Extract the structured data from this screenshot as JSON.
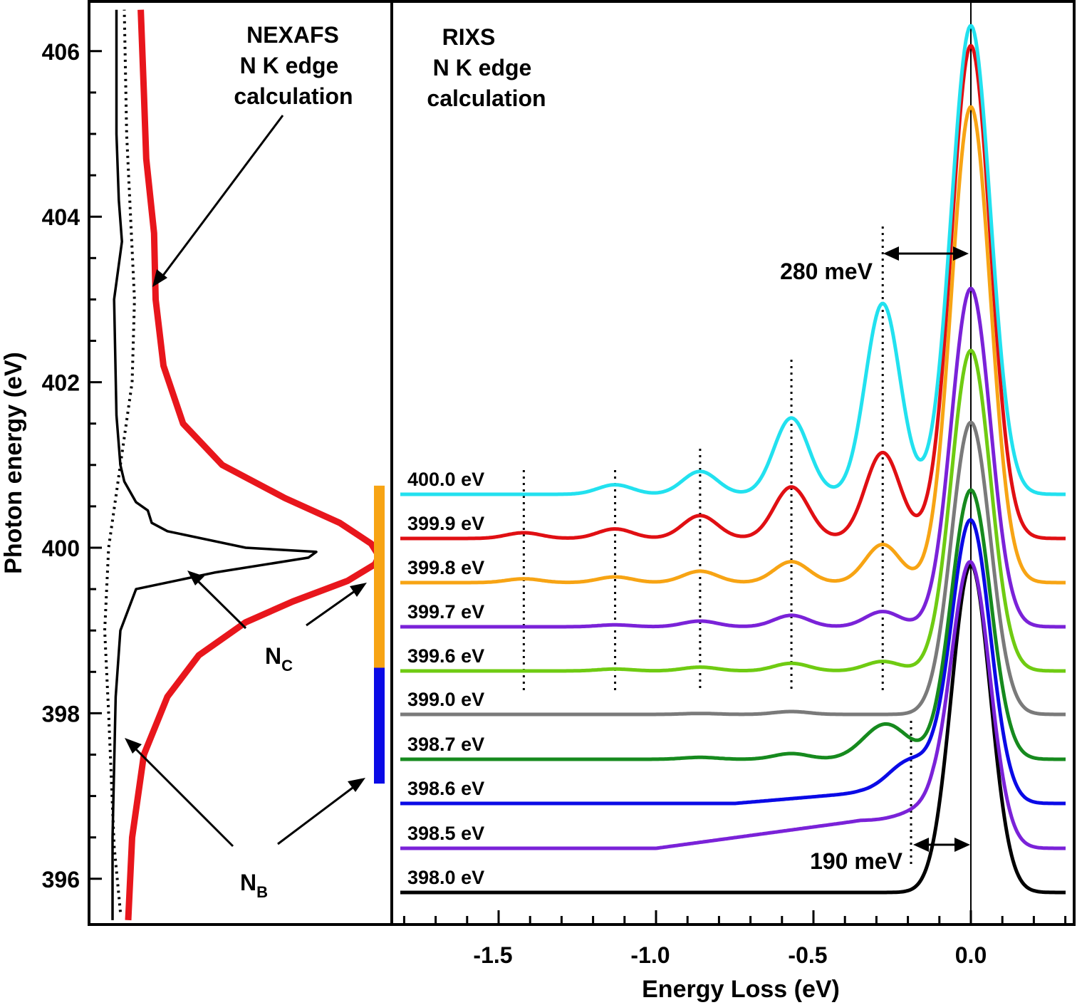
{
  "chart_data": [
    {
      "type": "line",
      "panel": "left",
      "annotation_lines": [
        "NEXAFS",
        "N K edge",
        "calculation"
      ],
      "ylabel": "Photon energy (eV)",
      "ylim": [
        395.5,
        406.6
      ],
      "y_ticks": [
        "396",
        "398",
        "400",
        "402",
        "404",
        "406"
      ],
      "y_tick_values": [
        396,
        398,
        400,
        402,
        404,
        406
      ],
      "series": [
        {
          "style": "black-solid",
          "color": "#000000",
          "points": [
            [
              0.03,
              395.5
            ],
            [
              0.03,
              396.5
            ],
            [
              0.034,
              398.2
            ],
            [
              0.04,
              399.0
            ],
            [
              0.06,
              399.5
            ],
            [
              0.16,
              399.7
            ],
            [
              0.28,
              399.88
            ],
            [
              0.29,
              399.95
            ],
            [
              0.2,
              400.0
            ],
            [
              0.1,
              400.2
            ],
            [
              0.08,
              400.3
            ],
            [
              0.075,
              400.45
            ],
            [
              0.06,
              400.55
            ],
            [
              0.045,
              400.8
            ],
            [
              0.04,
              401.0
            ],
            [
              0.035,
              401.6
            ],
            [
              0.032,
              403.0
            ],
            [
              0.042,
              403.7
            ],
            [
              0.038,
              404.2
            ],
            [
              0.035,
              405.0
            ],
            [
              0.035,
              406.5
            ]
          ]
        },
        {
          "style": "black-dotted",
          "color": "#000000",
          "points": [
            [
              0.04,
              395.6
            ],
            [
              0.032,
              396.4
            ],
            [
              0.025,
              398.0
            ],
            [
              0.02,
              399.0
            ],
            [
              0.025,
              400.0
            ],
            [
              0.04,
              401.0
            ],
            [
              0.055,
              402.0
            ],
            [
              0.058,
              403.0
            ],
            [
              0.053,
              404.0
            ],
            [
              0.048,
              405.0
            ],
            [
              0.045,
              406.5
            ]
          ]
        },
        {
          "style": "red-thick",
          "color": "#e8161c",
          "points": [
            [
              0.05,
              395.5
            ],
            [
              0.055,
              396.5
            ],
            [
              0.07,
              397.5
            ],
            [
              0.1,
              398.2
            ],
            [
              0.14,
              398.7
            ],
            [
              0.2,
              399.1
            ],
            [
              0.26,
              399.35
            ],
            [
              0.33,
              399.6
            ],
            [
              0.365,
              399.8
            ],
            [
              0.37,
              399.9
            ],
            [
              0.36,
              400.05
            ],
            [
              0.32,
              400.3
            ],
            [
              0.25,
              400.6
            ],
            [
              0.17,
              401.0
            ],
            [
              0.12,
              401.5
            ],
            [
              0.095,
              402.2
            ],
            [
              0.085,
              403.0
            ],
            [
              0.083,
              403.8
            ],
            [
              0.073,
              404.7
            ],
            [
              0.07,
              405.5
            ],
            [
              0.066,
              406.5
            ]
          ]
        }
      ],
      "labels": [
        {
          "text": "N",
          "sub": "C"
        },
        {
          "text": "N",
          "sub": "B"
        }
      ],
      "bands": [
        {
          "color": "#f7a414",
          "ylim": [
            398.45,
            400.75
          ]
        },
        {
          "color": "#0a0ae6",
          "ylim": [
            397.15,
            398.55
          ]
        }
      ]
    },
    {
      "type": "line",
      "panel": "right",
      "annotation_lines": [
        "RIXS",
        "N K edge",
        "calculation"
      ],
      "xlabel": "Energy Loss (eV)",
      "xlim": [
        -1.85,
        0.3
      ],
      "x_ticks": [
        "-1.5",
        "-1.0",
        "-0.5",
        "0.0"
      ],
      "x_tick_values": [
        -1.5,
        -1.0,
        -0.5,
        0.0
      ],
      "annotations": [
        {
          "text": "280 meV"
        },
        {
          "text": "190 meV"
        }
      ],
      "dotted_x": [
        -1.42,
        -1.13,
        -0.86,
        -0.57,
        -0.28
      ],
      "dotted_x2": [
        -0.19
      ],
      "series": [
        {
          "name": "400.0 eV",
          "color": "#22e1ef",
          "elastic": 658,
          "bumps": [
            [
              -1.13,
              0.05
            ],
            [
              -0.86,
              0.12
            ],
            [
              -0.57,
              0.4
            ],
            [
              -0.28,
              1.0
            ]
          ]
        },
        {
          "name": "399.9 eV",
          "color": "#e00f13",
          "elastic": 692,
          "bumps": [
            [
              -1.42,
              0.03
            ],
            [
              -1.13,
              0.05
            ],
            [
              -0.86,
              0.12
            ],
            [
              -0.57,
              0.27
            ],
            [
              -0.28,
              0.45
            ]
          ]
        },
        {
          "name": "399.8 eV",
          "color": "#f7a414",
          "elastic": 668,
          "bumps": [
            [
              -1.42,
              0.02
            ],
            [
              -1.13,
              0.03
            ],
            [
              -0.86,
              0.06
            ],
            [
              -0.57,
              0.11
            ],
            [
              -0.28,
              0.2
            ]
          ]
        },
        {
          "name": "399.7 eV",
          "color": "#7a22d8",
          "elastic": 475,
          "bumps": [
            [
              -1.13,
              0.01
            ],
            [
              -0.86,
              0.03
            ],
            [
              -0.57,
              0.06
            ],
            [
              -0.28,
              0.08
            ]
          ]
        },
        {
          "name": "399.6 eV",
          "color": "#6fcb12",
          "elastic": 450,
          "bumps": [
            [
              -1.13,
              0.01
            ],
            [
              -0.86,
              0.02
            ],
            [
              -0.57,
              0.04
            ],
            [
              -0.28,
              0.05
            ]
          ]
        },
        {
          "name": "399.0 eV",
          "color": "#7a7a7a",
          "elastic": 410,
          "bumps": [
            [
              -0.86,
              0.005
            ],
            [
              -0.57,
              0.015
            ]
          ]
        },
        {
          "name": "398.7 eV",
          "color": "#168a1e",
          "elastic": 378,
          "bumps": [
            [
              -0.86,
              0.01
            ],
            [
              -0.57,
              0.03
            ]
          ],
          "shoulder": [
            -0.27,
            0.33
          ]
        },
        {
          "name": "398.6 eV",
          "color": "#0a0ae6",
          "elastic": 391,
          "bumps": [],
          "shoulder": [
            -0.19,
            0.3
          ],
          "ramp": [
            -0.75,
            -0.35,
            0.025
          ]
        },
        {
          "name": "398.5 eV",
          "color": "#7a22d8",
          "elastic": 385,
          "bumps": [],
          "shoulder": [
            -0.15,
            0.1
          ],
          "ramp": [
            -1.0,
            -0.35,
            0.065
          ]
        },
        {
          "name": "398.0 eV",
          "color": "#000000",
          "elastic": 460,
          "bumps": []
        }
      ]
    }
  ]
}
